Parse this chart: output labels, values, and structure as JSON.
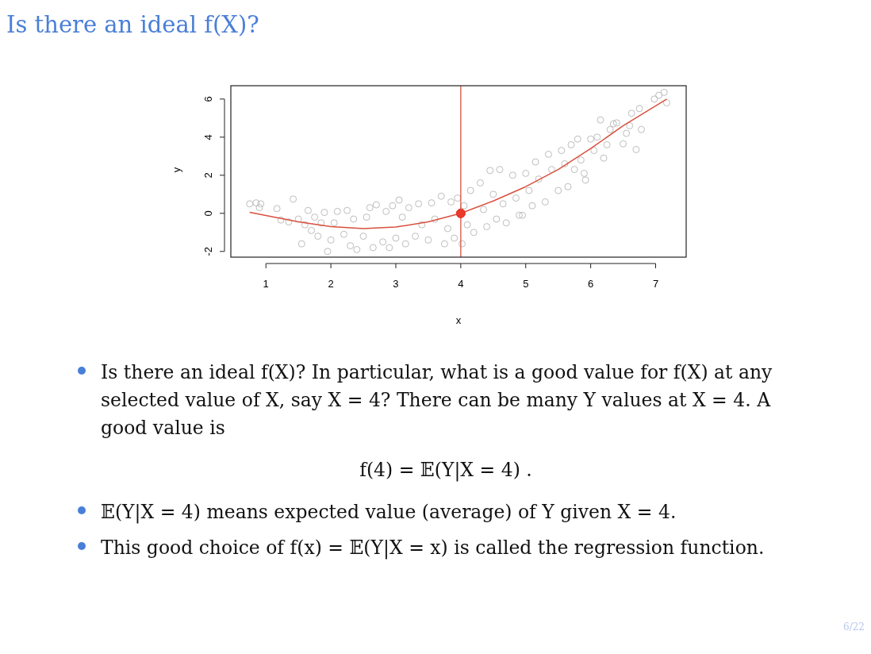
{
  "chart_data": {
    "type": "scatter",
    "title": "Is there an ideal f(X)?",
    "xlabel": "x",
    "ylabel": "y",
    "xlim": [
      0.46,
      7.47
    ],
    "ylim": [
      -2.3,
      6.7
    ],
    "xticks": [
      1,
      2,
      3,
      4,
      5,
      6,
      7
    ],
    "yticks": [
      -2,
      0,
      2,
      4,
      6
    ],
    "grid": false,
    "series": [
      {
        "color": "#bdbdbd",
        "marker": "circle",
        "x": [
          0.75,
          0.85,
          0.9,
          0.92,
          1.17,
          1.23,
          1.35,
          1.42,
          1.5,
          1.55,
          1.6,
          1.65,
          1.7,
          1.75,
          1.8,
          1.85,
          1.9,
          1.95,
          2.0,
          2.05,
          2.1,
          2.2,
          2.25,
          2.3,
          2.35,
          2.4,
          2.5,
          2.55,
          2.6,
          2.65,
          2.7,
          2.8,
          2.85,
          2.9,
          2.95,
          3.0,
          3.05,
          3.1,
          3.15,
          3.2,
          3.3,
          3.35,
          3.4,
          3.5,
          3.55,
          3.6,
          3.7,
          3.75,
          3.8,
          3.85,
          3.9,
          3.95,
          4.02,
          4.05,
          4.1,
          4.15,
          4.2,
          4.3,
          4.35,
          4.4,
          4.45,
          4.5,
          4.55,
          4.6,
          4.65,
          4.7,
          4.8,
          4.85,
          4.9,
          4.95,
          5.0,
          5.05,
          5.1,
          5.15,
          5.2,
          5.3,
          5.35,
          5.4,
          5.5,
          5.55,
          5.6,
          5.65,
          5.7,
          5.75,
          5.8,
          5.85,
          5.9,
          5.92,
          6.0,
          6.05,
          6.1,
          6.15,
          6.2,
          6.25,
          6.3,
          6.35,
          6.4,
          6.5,
          6.55,
          6.6,
          6.63,
          6.7,
          6.75,
          6.78,
          6.98,
          7.05,
          7.13,
          7.17
        ],
        "values": [
          0.5,
          0.55,
          0.3,
          0.5,
          0.25,
          -0.35,
          -0.45,
          0.75,
          -0.3,
          -1.6,
          -0.6,
          0.15,
          -0.9,
          -0.2,
          -1.2,
          -0.5,
          0.05,
          -2.0,
          -1.4,
          -0.5,
          0.1,
          -1.1,
          0.15,
          -1.7,
          -0.3,
          -1.9,
          -1.2,
          -0.2,
          0.3,
          -1.8,
          0.45,
          -1.5,
          0.1,
          -1.8,
          0.4,
          -1.3,
          0.7,
          -0.2,
          -1.6,
          0.3,
          -1.2,
          0.5,
          -0.6,
          -1.4,
          0.55,
          -0.3,
          0.9,
          -1.6,
          -0.8,
          0.6,
          -1.3,
          0.8,
          -1.6,
          0.4,
          -0.6,
          1.2,
          -1.0,
          1.6,
          0.2,
          -0.7,
          2.25,
          1.0,
          -0.3,
          2.3,
          0.5,
          -0.5,
          2.0,
          0.8,
          -0.1,
          -0.1,
          2.1,
          1.2,
          0.4,
          2.7,
          1.8,
          0.6,
          3.1,
          2.3,
          1.2,
          3.3,
          2.6,
          1.4,
          3.6,
          2.3,
          3.9,
          2.8,
          2.1,
          1.75,
          3.9,
          3.3,
          4.0,
          4.9,
          2.9,
          3.6,
          4.4,
          4.7,
          4.75,
          3.65,
          4.2,
          4.6,
          5.25,
          3.35,
          5.5,
          4.4,
          6.0,
          6.2,
          6.35,
          5.8
        ]
      },
      {
        "type": "line",
        "color": "#d9503f",
        "marker": "none",
        "x": [
          0.75,
          1.5,
          2,
          2.5,
          3,
          3.5,
          4,
          4.5,
          5,
          5.5,
          6,
          6.5,
          7.17
        ],
        "values": [
          0.05,
          -0.45,
          -0.7,
          -0.8,
          -0.72,
          -0.45,
          0,
          0.65,
          1.4,
          2.3,
          3.4,
          4.6,
          6.0
        ]
      },
      {
        "color": "#e8392c",
        "marker": "circle",
        "x": [
          4
        ],
        "values": [
          0
        ]
      }
    ],
    "ref_lines": [
      {
        "axis": "x",
        "value": 4,
        "color": "#d9503f"
      }
    ],
    "annotations": [
      "Is there an ideal f(X)? In particular, what is a good value for f(X) at any selected value of X, say X = 4? There can be many Y values at X = 4. A good value is",
      "f(4) = 𝔼(Y|X = 4) .",
      "𝔼(Y|X = 4) means expected value (average) of Y given X = 4.",
      "This good choice of f(x) = 𝔼(Y|X = x) is called the regression function.",
      "6/22"
    ]
  }
}
